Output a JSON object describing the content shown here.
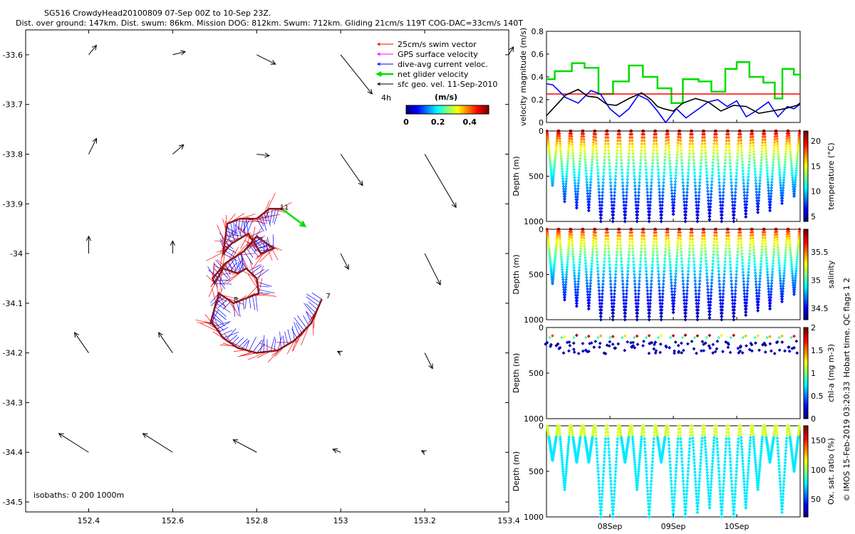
{
  "title": {
    "line1": "SG516 CrowdyHead20100809 07-Sep 00Z to 10-Sep 23Z.",
    "line2": "Dist. over ground: 147km. Dist. swum: 86km. Mission DOG: 812km. Swum: 712km. Gliding 21cm/s 119T COG-DAC=33cm/s 140T"
  },
  "colors": {
    "swim": "#ff0000",
    "gps": "#ff00ff",
    "dac": "#0000ff",
    "net": "#00dd00",
    "sfc": "#000000",
    "track": "#8b1a1a"
  },
  "chart_data": [
    {
      "type": "scatter",
      "name": "map",
      "xlim": [
        152.25,
        153.4
      ],
      "ylim": [
        -34.52,
        -33.55
      ],
      "xticks": [
        "152.4",
        "152.6",
        "152.8",
        "153",
        "153.2",
        "153.4"
      ],
      "yticks": [
        "-33.6",
        "-33.7",
        "-33.8",
        "-33.9",
        "-34",
        "-34.1",
        "-34.2",
        "-34.3",
        "-34.4",
        "-34.5"
      ],
      "xtick_values": [
        152.4,
        152.6,
        152.8,
        153.0,
        153.2,
        153.4
      ],
      "ytick_values": [
        -33.6,
        -33.7,
        -33.8,
        -33.9,
        -34.0,
        -34.1,
        -34.2,
        -34.3,
        -34.4,
        -34.5
      ],
      "legend": [
        "25cm/s swim vector",
        "GPS surface velocity",
        "dive-avg current veloc.",
        "net glider velocity",
        "sfc geo. vel. 11-Sep-2010"
      ],
      "legend_position": "top-right",
      "colorbar_label": "(m/s)",
      "colorbar_ticks": [
        "0",
        "0.2",
        "0.4"
      ],
      "colorbar_tick_values": [
        0,
        0.2,
        0.4
      ],
      "colorbar_range": [
        0,
        0.52
      ],
      "time_label": "4h",
      "isobaths_label": "isobaths: 0   200   1000m",
      "annotations": [
        {
          "text": "11",
          "lon": 152.855,
          "lat": -33.912
        },
        {
          "text": "7",
          "lon": 152.965,
          "lat": -34.09
        },
        {
          "text": "8",
          "lon": 152.745,
          "lat": -34.097
        }
      ],
      "track": [
        [
          152.955,
          -34.092
        ],
        [
          152.93,
          -34.14
        ],
        [
          152.89,
          -34.175
        ],
        [
          152.85,
          -34.195
        ],
        [
          152.8,
          -34.2
        ],
        [
          152.755,
          -34.19
        ],
        [
          152.72,
          -34.17
        ],
        [
          152.695,
          -34.14
        ],
        [
          152.69,
          -34.14
        ],
        [
          152.71,
          -34.08
        ],
        [
          152.745,
          -34.1
        ],
        [
          152.805,
          -34.08
        ],
        [
          152.8,
          -34.05
        ],
        [
          152.775,
          -34.03
        ],
        [
          152.755,
          -34.04
        ],
        [
          152.72,
          -34.03
        ],
        [
          152.7,
          -34.06
        ],
        [
          152.695,
          -34.05
        ],
        [
          152.725,
          -34.02
        ],
        [
          152.77,
          -33.995
        ],
        [
          152.8,
          -33.965
        ],
        [
          152.84,
          -33.99
        ],
        [
          152.81,
          -34.0
        ],
        [
          152.78,
          -33.96
        ],
        [
          152.74,
          -33.98
        ],
        [
          152.72,
          -34.0
        ],
        [
          152.73,
          -33.94
        ],
        [
          152.76,
          -33.93
        ],
        [
          152.8,
          -33.93
        ],
        [
          152.83,
          -33.91
        ],
        [
          152.86,
          -33.91
        ]
      ],
      "net_glider_velocity": {
        "lon": 152.86,
        "lat": -33.91,
        "dlon": 0.055,
        "dlat": -0.035
      },
      "sfc_geo_vel": [
        {
          "lon": 152.4,
          "lat": -33.6,
          "u": 0.05,
          "v": 0.06
        },
        {
          "lon": 152.6,
          "lat": -33.6,
          "u": 0.08,
          "v": 0.02
        },
        {
          "lon": 152.8,
          "lat": -33.6,
          "u": 0.12,
          "v": -0.06
        },
        {
          "lon": 153.0,
          "lat": -33.6,
          "u": 0.2,
          "v": -0.25
        },
        {
          "lon": 153.4,
          "lat": -33.6,
          "u": 0.03,
          "v": 0.05
        },
        {
          "lon": 152.4,
          "lat": -33.8,
          "u": 0.05,
          "v": 0.1
        },
        {
          "lon": 152.6,
          "lat": -33.8,
          "u": 0.07,
          "v": 0.06
        },
        {
          "lon": 152.8,
          "lat": -33.8,
          "u": 0.08,
          "v": -0.01
        },
        {
          "lon": 153.0,
          "lat": -33.8,
          "u": 0.14,
          "v": -0.2
        },
        {
          "lon": 153.2,
          "lat": -33.8,
          "u": 0.2,
          "v": -0.34
        },
        {
          "lon": 152.4,
          "lat": -34.0,
          "u": 0.0,
          "v": 0.11
        },
        {
          "lon": 152.6,
          "lat": -34.0,
          "u": 0.0,
          "v": 0.08
        },
        {
          "lon": 153.0,
          "lat": -34.0,
          "u": 0.05,
          "v": -0.1
        },
        {
          "lon": 153.2,
          "lat": -34.0,
          "u": 0.1,
          "v": -0.2
        },
        {
          "lon": 152.4,
          "lat": -34.2,
          "u": -0.09,
          "v": 0.13
        },
        {
          "lon": 152.6,
          "lat": -34.2,
          "u": -0.09,
          "v": 0.13
        },
        {
          "lon": 153.0,
          "lat": -34.2,
          "u": -0.02,
          "v": 0.01
        },
        {
          "lon": 153.2,
          "lat": -34.2,
          "u": 0.05,
          "v": -0.1
        },
        {
          "lon": 152.4,
          "lat": -34.4,
          "u": -0.19,
          "v": 0.12
        },
        {
          "lon": 152.6,
          "lat": -34.4,
          "u": -0.19,
          "v": 0.12
        },
        {
          "lon": 152.8,
          "lat": -34.4,
          "u": -0.15,
          "v": 0.08
        },
        {
          "lon": 153.0,
          "lat": -34.4,
          "u": -0.05,
          "v": 0.02
        },
        {
          "lon": 153.2,
          "lat": -34.4,
          "u": -0.02,
          "v": 0.01
        }
      ]
    },
    {
      "type": "line",
      "name": "velocity",
      "ylabel": "velocity magnitude (m/s)",
      "ylim": [
        0,
        0.8
      ],
      "yticks": [
        "0",
        "0.2",
        "0.4",
        "0.6",
        "0.8"
      ],
      "ytick_values": [
        0,
        0.2,
        0.4,
        0.6,
        0.8
      ],
      "xlim_days": [
        0,
        4
      ],
      "series": [
        {
          "color": "#00dd00",
          "kind": "step",
          "points": [
            [
              0,
              0.38
            ],
            [
              0.13,
              0.45
            ],
            [
              0.4,
              0.52
            ],
            [
              0.6,
              0.48
            ],
            [
              0.82,
              0.25
            ],
            [
              1.05,
              0.36
            ],
            [
              1.3,
              0.5
            ],
            [
              1.52,
              0.4
            ],
            [
              1.75,
              0.3
            ],
            [
              1.97,
              0.17
            ],
            [
              2.15,
              0.38
            ],
            [
              2.4,
              0.36
            ],
            [
              2.6,
              0.27
            ],
            [
              2.82,
              0.47
            ],
            [
              3.0,
              0.53
            ],
            [
              3.2,
              0.4
            ],
            [
              3.42,
              0.35
            ],
            [
              3.6,
              0.21
            ],
            [
              3.72,
              0.47
            ],
            [
              3.9,
              0.42
            ],
            [
              4.0,
              0.39
            ]
          ]
        },
        {
          "color": "#ff0000",
          "kind": "line",
          "points": [
            [
              0,
              0.25
            ],
            [
              4,
              0.25
            ]
          ]
        },
        {
          "color": "#0000ff",
          "kind": "line",
          "points": [
            [
              0,
              0.34
            ],
            [
              0.1,
              0.33
            ],
            [
              0.3,
              0.22
            ],
            [
              0.5,
              0.17
            ],
            [
              0.7,
              0.28
            ],
            [
              0.85,
              0.25
            ],
            [
              1.0,
              0.12
            ],
            [
              1.15,
              0.05
            ],
            [
              1.3,
              0.12
            ],
            [
              1.45,
              0.24
            ],
            [
              1.6,
              0.2
            ],
            [
              1.75,
              0.1
            ],
            [
              1.88,
              0.0
            ],
            [
              2.05,
              0.12
            ],
            [
              2.2,
              0.04
            ],
            [
              2.35,
              0.1
            ],
            [
              2.55,
              0.18
            ],
            [
              2.7,
              0.2
            ],
            [
              2.85,
              0.14
            ],
            [
              3.0,
              0.19
            ],
            [
              3.15,
              0.05
            ],
            [
              3.3,
              0.1
            ],
            [
              3.5,
              0.18
            ],
            [
              3.65,
              0.05
            ],
            [
              3.8,
              0.14
            ],
            [
              3.9,
              0.12
            ],
            [
              4.0,
              0.16
            ]
          ]
        },
        {
          "color": "#000000",
          "kind": "line",
          "points": [
            [
              0,
              0.06
            ],
            [
              0.1,
              0.12
            ],
            [
              0.3,
              0.24
            ],
            [
              0.5,
              0.29
            ],
            [
              0.65,
              0.23
            ],
            [
              0.8,
              0.22
            ],
            [
              0.95,
              0.16
            ],
            [
              1.1,
              0.15
            ],
            [
              1.3,
              0.21
            ],
            [
              1.5,
              0.26
            ],
            [
              1.65,
              0.2
            ],
            [
              1.75,
              0.14
            ],
            [
              1.85,
              0.12
            ],
            [
              2.0,
              0.1
            ],
            [
              2.15,
              0.17
            ],
            [
              2.35,
              0.21
            ],
            [
              2.55,
              0.18
            ],
            [
              2.75,
              0.1
            ],
            [
              2.95,
              0.15
            ],
            [
              3.15,
              0.14
            ],
            [
              3.35,
              0.08
            ],
            [
              3.55,
              0.1
            ],
            [
              3.75,
              0.12
            ],
            [
              3.95,
              0.15
            ],
            [
              4.0,
              0.17
            ]
          ]
        }
      ]
    },
    {
      "type": "scatter",
      "name": "temperature",
      "ylabel": "Depth (m)",
      "ylim": [
        1000,
        0
      ],
      "yticks": [
        "0",
        "500",
        "1000"
      ],
      "ytick_values": [
        0,
        500,
        1000
      ],
      "cbar_label": "temperature (°C)",
      "cbar_ticks": [
        "5",
        "10",
        "15",
        "20"
      ],
      "cbar_tick_values": [
        5,
        10,
        15,
        20
      ],
      "cbar_range": [
        4,
        22
      ],
      "cmap": "jet",
      "dives": 21,
      "max_depths": [
        600,
        780,
        850,
        880,
        1000,
        1000,
        1000,
        1000,
        1000,
        1000,
        920,
        1000,
        1000,
        980,
        1000,
        1000,
        950,
        900,
        880,
        800,
        720
      ],
      "profile": "temperature"
    },
    {
      "type": "scatter",
      "name": "salinity",
      "ylabel": "Depth (m)",
      "ylim": [
        1000,
        0
      ],
      "yticks": [
        "0",
        "500",
        "1000"
      ],
      "ytick_values": [
        0,
        500,
        1000
      ],
      "cbar_label": "salinity",
      "cbar_ticks": [
        "34.5",
        "35",
        "35.5"
      ],
      "cbar_tick_values": [
        34.5,
        35,
        35.5
      ],
      "cbar_range": [
        34.3,
        35.9
      ],
      "cmap": "jet",
      "dives": 21,
      "max_depths": [
        600,
        780,
        850,
        880,
        1000,
        1000,
        1000,
        1000,
        1000,
        1000,
        920,
        1000,
        1000,
        980,
        1000,
        1000,
        950,
        900,
        880,
        800,
        720
      ],
      "profile": "salinity"
    },
    {
      "type": "scatter",
      "name": "chla",
      "ylabel": "Depth (m)",
      "ylim": [
        1000,
        0
      ],
      "yticks": [
        "0",
        "500",
        "1000"
      ],
      "ytick_values": [
        0,
        500,
        1000
      ],
      "cbar_label": "chl-a (mg m-3)",
      "cbar_ticks": [
        "0",
        "0.5",
        "1",
        "1.5",
        "2"
      ],
      "cbar_tick_values": [
        0,
        0.5,
        1,
        1.5,
        2
      ],
      "cbar_range": [
        0,
        2
      ],
      "cmap": "jet",
      "dives": 21,
      "profile": "chla"
    },
    {
      "type": "scatter",
      "name": "oxygen",
      "ylabel": "Depth (m)",
      "ylim": [
        1000,
        0
      ],
      "yticks": [
        "0",
        "500",
        "1000"
      ],
      "ytick_values": [
        0,
        500,
        1000
      ],
      "cbar_label": "Ox. sat. ratio (%)",
      "cbar_ticks": [
        "50",
        "100",
        "150"
      ],
      "cbar_tick_values": [
        50,
        100,
        150
      ],
      "cbar_range": [
        20,
        175
      ],
      "cmap": "jet",
      "dives": 21,
      "max_depths": [
        380,
        700,
        400,
        400,
        1000,
        1000,
        400,
        700,
        1000,
        400,
        1000,
        1000,
        950,
        900,
        1000,
        1000,
        900,
        700,
        400,
        950,
        500
      ],
      "profile": "oxygen"
    }
  ],
  "time_axis": {
    "labels": [
      "08Sep",
      "09Sep",
      "10Sep"
    ],
    "label_days": [
      1,
      2,
      3
    ],
    "xlim_days": [
      0,
      4
    ]
  },
  "side_text": {
    "qc": "Hobart time. QC flags 1  2",
    "credit": "© IMOS 15-Feb-2019 03:20:33"
  }
}
